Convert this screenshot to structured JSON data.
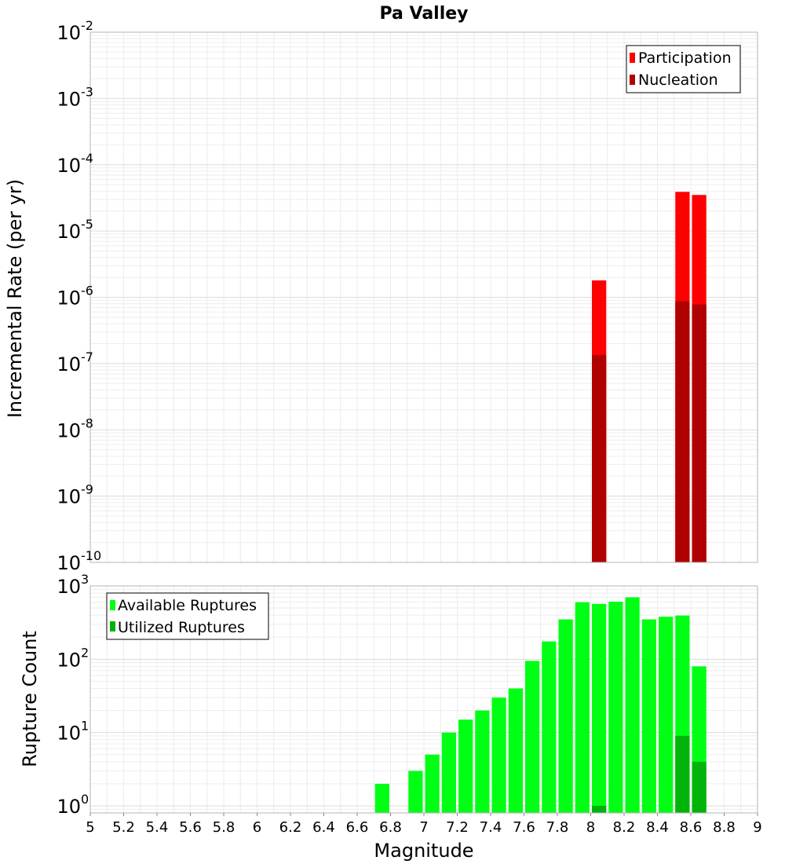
{
  "chart_data": [
    {
      "type": "bar",
      "title": "Pa Valley",
      "ylabel": "Incremental Rate (per yr)",
      "xlabel": "",
      "y_scale": "log",
      "ylim": [
        1e-10,
        0.01
      ],
      "xlim": [
        5,
        9
      ],
      "grid": true,
      "legend_position": "top-right",
      "y_ticks": [
        {
          "base": "10",
          "exp": "-2",
          "value": 0.01
        },
        {
          "base": "10",
          "exp": "-3",
          "value": 0.001
        },
        {
          "base": "10",
          "exp": "-4",
          "value": 0.0001
        },
        {
          "base": "10",
          "exp": "-5",
          "value": 1e-05
        },
        {
          "base": "10",
          "exp": "-6",
          "value": 1e-06
        },
        {
          "base": "10",
          "exp": "-7",
          "value": 1e-07
        },
        {
          "base": "10",
          "exp": "-8",
          "value": 1e-08
        },
        {
          "base": "10",
          "exp": "-9",
          "value": 1e-09
        },
        {
          "base": "10",
          "exp": "-10",
          "value": 1e-10
        }
      ],
      "bar_width": 0.1,
      "series": [
        {
          "name": "Participation",
          "color": "#ff0000",
          "x": [
            8.05,
            8.55,
            8.65
          ],
          "values": [
            1.8e-06,
            3.9e-05,
            3.5e-05
          ]
        },
        {
          "name": "Nucleation",
          "color": "#b00000",
          "x": [
            8.05,
            8.55,
            8.65
          ],
          "values": [
            1.35e-07,
            8.7e-07,
            7.8e-07
          ]
        }
      ]
    },
    {
      "type": "bar",
      "title": "",
      "ylabel": "Rupture Count",
      "xlabel": "Magnitude",
      "y_scale": "log",
      "ylim": [
        0.8,
        1000
      ],
      "xlim": [
        5,
        9
      ],
      "grid": true,
      "legend_position": "top-left",
      "x_ticks": [
        "5",
        "5.2",
        "5.4",
        "5.6",
        "5.8",
        "6",
        "6.2",
        "6.4",
        "6.6",
        "6.8",
        "7",
        "7.2",
        "7.4",
        "7.6",
        "7.8",
        "8",
        "8.2",
        "8.4",
        "8.6",
        "8.8",
        "9"
      ],
      "y_ticks": [
        {
          "base": "10",
          "exp": "3",
          "value": 1000
        },
        {
          "base": "10",
          "exp": "2",
          "value": 100
        },
        {
          "base": "10",
          "exp": "1",
          "value": 10
        },
        {
          "base": "10",
          "exp": "0",
          "value": 1
        }
      ],
      "bar_width": 0.1,
      "series": [
        {
          "name": "Available Ruptures",
          "color": "#00ff14",
          "x": [
            6.75,
            6.95,
            7.05,
            7.15,
            7.25,
            7.35,
            7.45,
            7.55,
            7.65,
            7.75,
            7.85,
            7.95,
            8.05,
            8.15,
            8.25,
            8.35,
            8.45,
            8.55,
            8.65
          ],
          "values": [
            2,
            3,
            5,
            10,
            15,
            20,
            30,
            40,
            95,
            175,
            350,
            600,
            570,
            610,
            700,
            350,
            380,
            395,
            80
          ]
        },
        {
          "name": "Utilized Ruptures",
          "color": "#00b40a",
          "x": [
            8.05,
            8.55,
            8.65
          ],
          "values": [
            1,
            9,
            4
          ]
        }
      ]
    }
  ]
}
